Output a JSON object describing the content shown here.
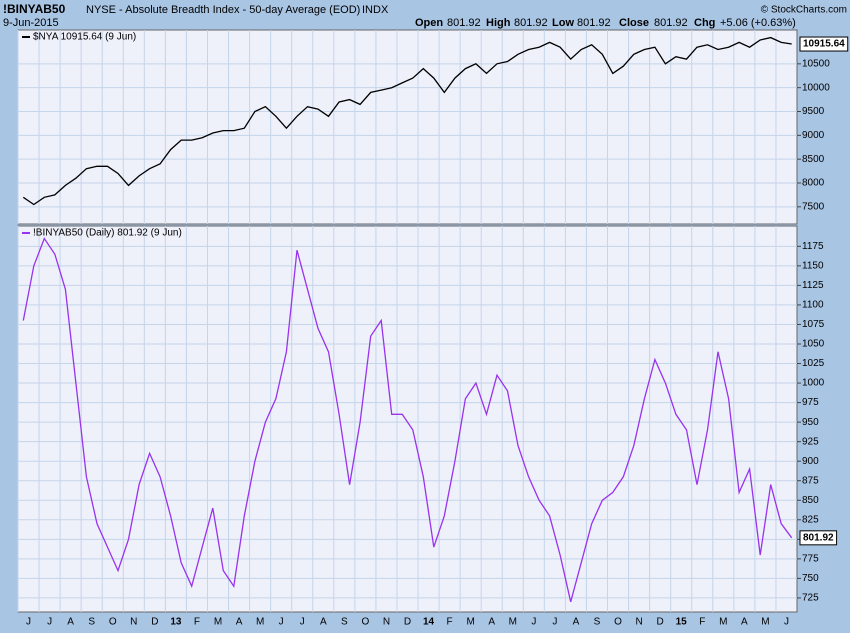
{
  "header": {
    "symbol": "!BINYAB50",
    "name": "NYSE - Absolute Breadth Index - 50-day Average (EOD)",
    "exchange": "INDX",
    "date": "9-Jun-2015",
    "open_label": "Open",
    "open": "801.92",
    "high_label": "High",
    "high": "801.92",
    "low_label": "Low",
    "low": "801.92",
    "close_label": "Close",
    "close": "801.92",
    "chg_label": "Chg",
    "chg": "+5.06 (+0.63%)",
    "credit": "© StockCharts.com"
  },
  "chart_data": [
    {
      "type": "line",
      "ylim": [
        7140,
        11210
      ],
      "yticks": [
        7500,
        8000,
        8500,
        9000,
        9500,
        10000,
        10500
      ],
      "grid": true,
      "series": [
        {
          "name": "$NYA 10915.64 (9 Jun)",
          "color": "#000000",
          "values": [
            7700,
            7550,
            7700,
            7750,
            7950,
            8100,
            8300,
            8350,
            8350,
            8200,
            7950,
            8150,
            8300,
            8400,
            8700,
            8900,
            8900,
            8950,
            9050,
            9100,
            9100,
            9150,
            9500,
            9600,
            9400,
            9150,
            9400,
            9600,
            9550,
            9400,
            9700,
            9750,
            9650,
            9900,
            9950,
            10000,
            10100,
            10200,
            10400,
            10200,
            9900,
            10200,
            10400,
            10500,
            10300,
            10500,
            10550,
            10700,
            10800,
            10850,
            10950,
            10850,
            10600,
            10800,
            10900,
            10700,
            10300,
            10450,
            10700,
            10800,
            10850,
            10500,
            10650,
            10600,
            10850,
            10900,
            10800,
            10850,
            10950,
            10850,
            11000,
            11050,
            10950,
            10915.64
          ]
        }
      ]
    },
    {
      "type": "line",
      "ylim": [
        707,
        1201
      ],
      "yticks": [
        725,
        750,
        775,
        800,
        825,
        850,
        875,
        900,
        925,
        950,
        975,
        1000,
        1025,
        1050,
        1075,
        1100,
        1125,
        1150,
        1175
      ],
      "grid": true,
      "categories": [
        "J",
        null,
        "J",
        null,
        "A",
        null,
        "S",
        null,
        "O",
        null,
        "N",
        null,
        "D",
        null,
        "13",
        null,
        "F",
        null,
        "M",
        null,
        "A",
        null,
        "M",
        null,
        "J",
        null,
        "J",
        null,
        "A",
        null,
        "S",
        null,
        "O",
        null,
        "N",
        null,
        "D",
        null,
        "14",
        null,
        "F",
        null,
        "M",
        null,
        "A",
        null,
        "M",
        null,
        "J",
        null,
        "J",
        null,
        "A",
        null,
        "S",
        null,
        "O",
        null,
        "N",
        null,
        "D",
        null,
        "15",
        null,
        "F",
        null,
        "M",
        null,
        "A",
        null,
        "M",
        null,
        "J",
        null
      ],
      "series": [
        {
          "name": "!BINYAB50 (Daily) 801.92 (9 Jun)",
          "color": "#9933ee",
          "values": [
            1080,
            1150,
            1185,
            1165,
            1120,
            1000,
            880,
            820,
            790,
            760,
            800,
            870,
            910,
            880,
            830,
            770,
            740,
            790,
            840,
            760,
            740,
            830,
            900,
            950,
            980,
            1040,
            1170,
            1120,
            1070,
            1040,
            960,
            870,
            950,
            1060,
            1080,
            960,
            960,
            940,
            880,
            790,
            830,
            900,
            980,
            1000,
            960,
            1010,
            990,
            920,
            880,
            850,
            830,
            780,
            720,
            770,
            820,
            850,
            860,
            880,
            920,
            980,
            1030,
            1000,
            960,
            940,
            870,
            940,
            1040,
            980,
            860,
            890,
            780,
            870,
            820,
            801.92
          ]
        }
      ]
    }
  ]
}
